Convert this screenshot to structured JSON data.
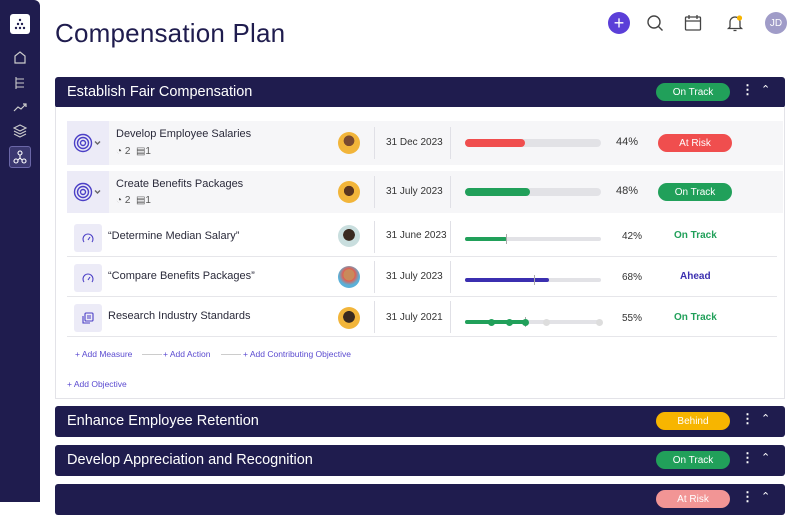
{
  "header": {
    "title": "Compensation Plan",
    "user_initials": "JD"
  },
  "sidebar": {
    "items": [
      "home-icon",
      "list-icon",
      "trend-icon",
      "layers-icon",
      "network-icon"
    ]
  },
  "colors": {
    "navy": "#1f1c4e",
    "green": "#21a05a",
    "red": "#f04e4e",
    "yellow": "#f7b500",
    "purple": "#3b2fb0",
    "light_red": "#f29595"
  },
  "sections": [
    {
      "title": "Establish Fair Compensation",
      "status": "On Track"
    },
    {
      "title": "Enhance Employee Retention",
      "status": "Behind"
    },
    {
      "title": "Develop Appreciation and Recognition",
      "status": "On Track"
    },
    {
      "title": "",
      "status": "At Risk"
    }
  ],
  "objectives": [
    {
      "name": "Develop Employee Salaries",
      "measures": "2",
      "actions": "1",
      "date": "31 Dec 2023",
      "progress": 44,
      "progress_label": "44%",
      "status": "At Risk"
    },
    {
      "name": "Create Benefits Packages",
      "measures": "2",
      "actions": "1",
      "date": "31 July 2023",
      "progress": 48,
      "progress_label": "48%",
      "status": "On Track"
    }
  ],
  "sub_items": [
    {
      "name": "“Determine Median Salary”",
      "date": "31 June 2023",
      "progress": 42,
      "progress_label": "42%",
      "status": "On Track"
    },
    {
      "name": "“Compare Benefits Packages”",
      "date": "31 July 2023",
      "progress": 68,
      "progress_label": "68%",
      "status": "Ahead"
    },
    {
      "name": "Research Industry Standards",
      "date": "31 July 2021",
      "progress": 55,
      "progress_label": "55%",
      "status": "On Track"
    }
  ],
  "links": {
    "add_measure": "+ Add Measure",
    "add_action": "+ Add Action",
    "add_contributing": "+ Add Contributing Objective",
    "add_objective": "+ Add Objective"
  }
}
